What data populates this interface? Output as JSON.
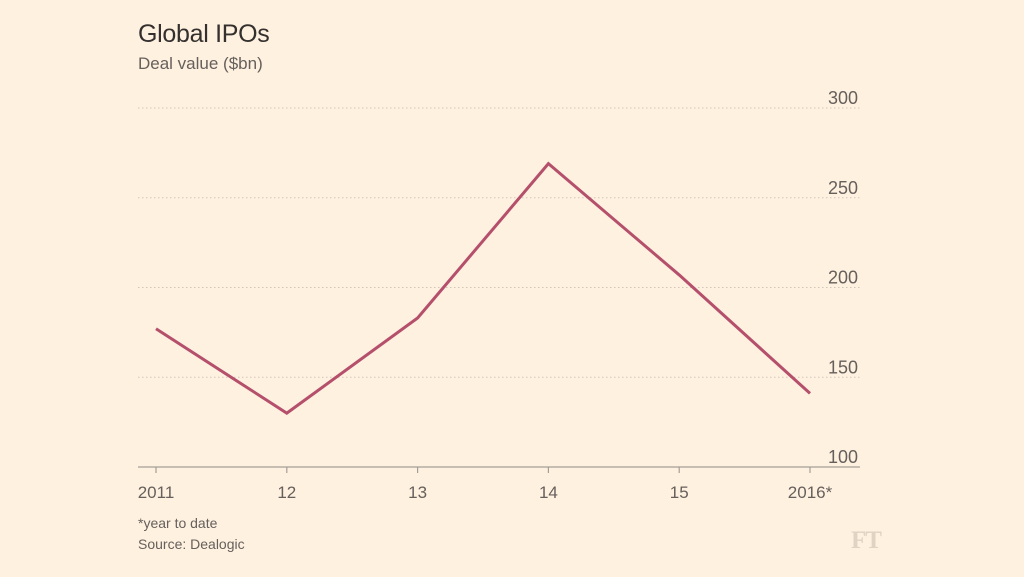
{
  "header": {
    "title": "Global IPOs",
    "subtitle": "Deal value ($bn)"
  },
  "footer": {
    "footnote": "*year to date",
    "source": "Source: Dealogic",
    "logo": "FT"
  },
  "colors": {
    "background": "#fff1e0",
    "line": "#b5506c",
    "grid": "#cec6b9",
    "axis": "#66605c"
  },
  "chart_data": {
    "type": "line",
    "title": "Global IPOs",
    "subtitle": "Deal value ($bn)",
    "categories": [
      "2011",
      "12",
      "13",
      "14",
      "15",
      "2016*"
    ],
    "series": [
      {
        "values": [
          177,
          130,
          183,
          269,
          207,
          141
        ]
      }
    ],
    "ylim": [
      100,
      300
    ],
    "yticks": [
      100,
      150,
      200,
      250,
      300
    ],
    "grid": true,
    "y_axis_position": "right"
  }
}
